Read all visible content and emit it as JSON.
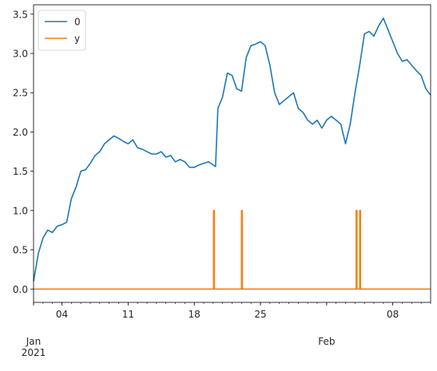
{
  "chart_data": {
    "type": "line",
    "x_start": "2021-01-01",
    "x_end": "2021-02-12",
    "ylim": [
      -0.17,
      3.62
    ],
    "y_ticks": [
      0.0,
      0.5,
      1.0,
      1.5,
      2.0,
      2.5,
      3.0,
      3.5
    ],
    "y_tick_labels": [
      "0.0",
      "0.5",
      "1.0",
      "1.5",
      "2.0",
      "2.5",
      "3.0",
      "3.5"
    ],
    "x_major_ticks": [
      {
        "date": "2021-01-04",
        "label": "04"
      },
      {
        "date": "2021-01-11",
        "label": "11"
      },
      {
        "date": "2021-01-18",
        "label": "18"
      },
      {
        "date": "2021-01-25",
        "label": "25"
      },
      {
        "date": "2021-02-08",
        "label": "08"
      }
    ],
    "x_month_ticks": [
      {
        "date": "2021-01-01",
        "label": "Jan"
      },
      {
        "date": "2021-02-01",
        "label": "Feb"
      }
    ],
    "x_year_label": {
      "date": "2021-01-01",
      "label": "2021"
    },
    "legend": {
      "placement": "upper-left",
      "entries": [
        "0",
        "y"
      ]
    },
    "series": [
      {
        "name": "0",
        "color": "#1f77b4",
        "points": [
          [
            "2021-01-01",
            0.1
          ],
          [
            "2021-01-01T12:00",
            0.45
          ],
          [
            "2021-01-02",
            0.65
          ],
          [
            "2021-01-02T12:00",
            0.75
          ],
          [
            "2021-01-03",
            0.72
          ],
          [
            "2021-01-03T12:00",
            0.8
          ],
          [
            "2021-01-04",
            0.82
          ],
          [
            "2021-01-04T12:00",
            0.85
          ],
          [
            "2021-01-05",
            1.15
          ],
          [
            "2021-01-05T12:00",
            1.3
          ],
          [
            "2021-01-06",
            1.5
          ],
          [
            "2021-01-06T12:00",
            1.52
          ],
          [
            "2021-01-07",
            1.6
          ],
          [
            "2021-01-07T12:00",
            1.7
          ],
          [
            "2021-01-08",
            1.75
          ],
          [
            "2021-01-08T12:00",
            1.85
          ],
          [
            "2021-01-09",
            1.9
          ],
          [
            "2021-01-09T12:00",
            1.95
          ],
          [
            "2021-01-10",
            1.92
          ],
          [
            "2021-01-10T12:00",
            1.88
          ],
          [
            "2021-01-11",
            1.85
          ],
          [
            "2021-01-11T12:00",
            1.9
          ],
          [
            "2021-01-12",
            1.8
          ],
          [
            "2021-01-12T12:00",
            1.78
          ],
          [
            "2021-01-13",
            1.75
          ],
          [
            "2021-01-13T12:00",
            1.72
          ],
          [
            "2021-01-14",
            1.72
          ],
          [
            "2021-01-14T12:00",
            1.75
          ],
          [
            "2021-01-15",
            1.68
          ],
          [
            "2021-01-15T12:00",
            1.7
          ],
          [
            "2021-01-16",
            1.62
          ],
          [
            "2021-01-16T12:00",
            1.65
          ],
          [
            "2021-01-17",
            1.62
          ],
          [
            "2021-01-17T12:00",
            1.55
          ],
          [
            "2021-01-18",
            1.55
          ],
          [
            "2021-01-18T12:00",
            1.58
          ],
          [
            "2021-01-19",
            1.6
          ],
          [
            "2021-01-19T12:00",
            1.62
          ],
          [
            "2021-01-20",
            1.58
          ],
          [
            "2021-01-20T06:00",
            1.56
          ],
          [
            "2021-01-20T12:00",
            2.3
          ],
          [
            "2021-01-21",
            2.45
          ],
          [
            "2021-01-21T12:00",
            2.75
          ],
          [
            "2021-01-22",
            2.72
          ],
          [
            "2021-01-22T12:00",
            2.55
          ],
          [
            "2021-01-23",
            2.52
          ],
          [
            "2021-01-23T12:00",
            2.95
          ],
          [
            "2021-01-24",
            3.1
          ],
          [
            "2021-01-24T12:00",
            3.12
          ],
          [
            "2021-01-25",
            3.15
          ],
          [
            "2021-01-25T12:00",
            3.1
          ],
          [
            "2021-01-26",
            2.85
          ],
          [
            "2021-01-26T12:00",
            2.5
          ],
          [
            "2021-01-27",
            2.35
          ],
          [
            "2021-01-27T12:00",
            2.4
          ],
          [
            "2021-01-28",
            2.45
          ],
          [
            "2021-01-28T12:00",
            2.5
          ],
          [
            "2021-01-29",
            2.3
          ],
          [
            "2021-01-29T12:00",
            2.25
          ],
          [
            "2021-01-30",
            2.15
          ],
          [
            "2021-01-30T12:00",
            2.1
          ],
          [
            "2021-01-31",
            2.15
          ],
          [
            "2021-01-31T12:00",
            2.05
          ],
          [
            "2021-02-01",
            2.15
          ],
          [
            "2021-02-01T12:00",
            2.2
          ],
          [
            "2021-02-02",
            2.15
          ],
          [
            "2021-02-02T12:00",
            2.1
          ],
          [
            "2021-02-03",
            1.85
          ],
          [
            "2021-02-03T12:00",
            2.1
          ],
          [
            "2021-02-04",
            2.5
          ],
          [
            "2021-02-04T12:00",
            2.85
          ],
          [
            "2021-02-05",
            3.25
          ],
          [
            "2021-02-05T12:00",
            3.28
          ],
          [
            "2021-02-06",
            3.22
          ],
          [
            "2021-02-06T12:00",
            3.35
          ],
          [
            "2021-02-07",
            3.45
          ],
          [
            "2021-02-07T12:00",
            3.3
          ],
          [
            "2021-02-08",
            3.15
          ],
          [
            "2021-02-08T12:00",
            3.0
          ],
          [
            "2021-02-09",
            2.9
          ],
          [
            "2021-02-09T12:00",
            2.92
          ],
          [
            "2021-02-10",
            2.85
          ],
          [
            "2021-02-10T12:00",
            2.78
          ],
          [
            "2021-02-11",
            2.72
          ],
          [
            "2021-02-11T12:00",
            2.55
          ],
          [
            "2021-02-12",
            2.47
          ]
        ]
      },
      {
        "name": "y",
        "color": "#ff7f0e",
        "points": [
          [
            "2021-01-01",
            0
          ],
          [
            "2021-01-20T01:00",
            0
          ],
          [
            "2021-01-20T01:00",
            1
          ],
          [
            "2021-01-20T03:00",
            1
          ],
          [
            "2021-01-20T03:00",
            0
          ],
          [
            "2021-01-23T00:00",
            0
          ],
          [
            "2021-01-23T00:00",
            1
          ],
          [
            "2021-01-23T02:00",
            1
          ],
          [
            "2021-01-23T02:00",
            0
          ],
          [
            "2021-02-04T03:00",
            0
          ],
          [
            "2021-02-04T03:00",
            1
          ],
          [
            "2021-02-04T05:00",
            1
          ],
          [
            "2021-02-04T05:00",
            0
          ],
          [
            "2021-02-04T12:00",
            0
          ],
          [
            "2021-02-04T12:00",
            1
          ],
          [
            "2021-02-04T14:00",
            1
          ],
          [
            "2021-02-04T14:00",
            0
          ],
          [
            "2021-02-12",
            0
          ]
        ]
      }
    ]
  }
}
